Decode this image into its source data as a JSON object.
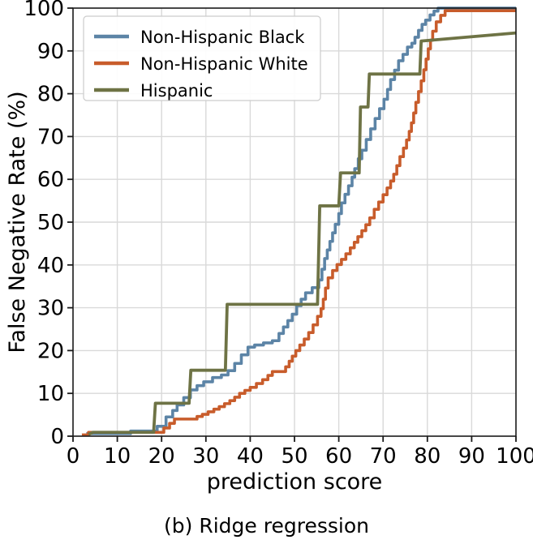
{
  "figure": {
    "caption": "(b) Ridge regression"
  },
  "chart_data": {
    "type": "line",
    "title": "",
    "xlabel": "prediction score",
    "ylabel": "False Negative Rate (%)",
    "xlim": [
      0,
      100
    ],
    "ylim": [
      0,
      100
    ],
    "xticks": [
      0,
      10,
      20,
      30,
      40,
      50,
      60,
      70,
      80,
      90,
      100
    ],
    "yticks": [
      0,
      10,
      20,
      30,
      40,
      50,
      60,
      70,
      80,
      90,
      100
    ],
    "grid": true,
    "grid_color": "#d9d9d9",
    "spine_color": "#1a1a1a",
    "legend_position": "upper left",
    "series": [
      {
        "name": "Non-Hispanic Black",
        "color": "#5C84A6",
        "interp": "step",
        "line_width": 3.6,
        "points": [
          [
            3,
            0.6
          ],
          [
            13,
            1.2
          ],
          [
            19,
            2.3
          ],
          [
            21,
            4.5
          ],
          [
            22.5,
            6
          ],
          [
            23.5,
            7.3
          ],
          [
            25,
            9
          ],
          [
            26.5,
            10.8
          ],
          [
            28,
            11.8
          ],
          [
            29.5,
            12.7
          ],
          [
            31.5,
            13.7
          ],
          [
            33.5,
            14.3
          ],
          [
            35,
            15.3
          ],
          [
            36.5,
            17
          ],
          [
            38,
            19
          ],
          [
            39.5,
            20.8
          ],
          [
            41,
            21.3
          ],
          [
            43,
            21.8
          ],
          [
            45,
            22.3
          ],
          [
            46.5,
            24
          ],
          [
            47.5,
            25.5
          ],
          [
            48.5,
            27
          ],
          [
            49.5,
            28.5
          ],
          [
            50.5,
            30.5
          ],
          [
            51.5,
            32
          ],
          [
            52.5,
            33.5
          ],
          [
            54,
            34.7
          ],
          [
            55.5,
            36.5
          ],
          [
            56.2,
            39
          ],
          [
            56.8,
            41.5
          ],
          [
            57.4,
            43.5
          ],
          [
            58,
            45.5
          ],
          [
            58.6,
            47.5
          ],
          [
            59.2,
            49.5
          ],
          [
            60,
            52
          ],
          [
            60.6,
            54.5
          ],
          [
            61.4,
            56.5
          ],
          [
            62.2,
            58.5
          ],
          [
            63,
            60.5
          ],
          [
            63.6,
            62.5
          ],
          [
            64.4,
            64.8
          ],
          [
            65.2,
            66.8
          ],
          [
            66.2,
            69.3
          ],
          [
            67.2,
            71.8
          ],
          [
            68.2,
            74.2
          ],
          [
            69.2,
            76.5
          ],
          [
            70.2,
            78.7
          ],
          [
            71,
            81
          ],
          [
            71.7,
            83.3
          ],
          [
            72.6,
            85.5
          ],
          [
            73.5,
            87.7
          ],
          [
            74.5,
            89.2
          ],
          [
            75.5,
            90.9
          ],
          [
            76.5,
            91.8
          ],
          [
            77.2,
            93.2
          ],
          [
            78,
            94.8
          ],
          [
            78.8,
            96.2
          ],
          [
            79.6,
            97.2
          ],
          [
            80.6,
            98.4
          ],
          [
            81.5,
            99.3
          ],
          [
            82.4,
            100
          ],
          [
            100,
            100
          ]
        ]
      },
      {
        "name": "Non-Hispanic White",
        "color": "#C85C2B",
        "interp": "step",
        "line_width": 3.6,
        "points": [
          [
            2,
            0.3
          ],
          [
            3.5,
            0.9
          ],
          [
            20.5,
            1.9
          ],
          [
            21.8,
            3
          ],
          [
            22.9,
            4
          ],
          [
            28,
            4.6
          ],
          [
            29.2,
            5.1
          ],
          [
            30.5,
            5.7
          ],
          [
            31.8,
            6.3
          ],
          [
            33,
            6.9
          ],
          [
            34.2,
            7.6
          ],
          [
            35.4,
            8.3
          ],
          [
            36.5,
            9.1
          ],
          [
            37.6,
            10
          ],
          [
            38.8,
            10.7
          ],
          [
            40,
            11.4
          ],
          [
            41.4,
            12.3
          ],
          [
            42.8,
            13.2
          ],
          [
            44,
            14.2
          ],
          [
            45,
            15.1
          ],
          [
            48,
            16.2
          ],
          [
            48.8,
            17.5
          ],
          [
            49.5,
            18.7
          ],
          [
            50.3,
            20
          ],
          [
            51.2,
            21.3
          ],
          [
            52.2,
            22.7
          ],
          [
            53.2,
            24.2
          ],
          [
            54.2,
            26
          ],
          [
            55.2,
            28
          ],
          [
            56,
            29.8
          ],
          [
            56.5,
            32
          ],
          [
            57,
            34.6
          ],
          [
            57.6,
            37
          ],
          [
            58.6,
            38.7
          ],
          [
            59.6,
            40.1
          ],
          [
            60.6,
            41.3
          ],
          [
            61.6,
            42.6
          ],
          [
            62.6,
            44
          ],
          [
            63.5,
            45.3
          ],
          [
            64.3,
            46.6
          ],
          [
            65.2,
            48
          ],
          [
            66.1,
            49.4
          ],
          [
            67,
            51
          ],
          [
            68,
            53
          ],
          [
            69,
            54.7
          ],
          [
            70,
            56.4
          ],
          [
            70.9,
            58
          ],
          [
            71.7,
            59.6
          ],
          [
            72.4,
            61.2
          ],
          [
            73.1,
            63.2
          ],
          [
            73.8,
            65.3
          ],
          [
            74.6,
            67.3
          ],
          [
            75.3,
            69.2
          ],
          [
            75.9,
            71.2
          ],
          [
            76.4,
            73.2
          ],
          [
            76.9,
            75.5
          ],
          [
            77.4,
            78
          ],
          [
            78,
            80.5
          ],
          [
            78.6,
            83
          ],
          [
            79.2,
            85.6
          ],
          [
            79.7,
            88.1
          ],
          [
            80.2,
            90.5
          ],
          [
            80.7,
            92.5
          ],
          [
            81.2,
            94.6
          ],
          [
            82,
            96.8
          ],
          [
            83,
            98.3
          ],
          [
            84,
            99.4
          ],
          [
            100,
            99.4
          ]
        ]
      },
      {
        "name": "Hispanic",
        "color": "#6E7345",
        "interp": "linear",
        "line_width": 3.8,
        "points": [
          [
            3.5,
            0.4
          ],
          [
            4.5,
            0.9
          ],
          [
            18.2,
            0.9
          ],
          [
            18.6,
            7.7
          ],
          [
            26.2,
            7.7
          ],
          [
            26.6,
            15.4
          ],
          [
            34.4,
            15.4
          ],
          [
            34.8,
            30.8
          ],
          [
            55.2,
            30.8
          ],
          [
            55.7,
            53.8
          ],
          [
            60,
            53.8
          ],
          [
            60.4,
            61.5
          ],
          [
            64.6,
            61.5
          ],
          [
            64.9,
            76.9
          ],
          [
            66.6,
            76.9
          ],
          [
            66.9,
            84.6
          ],
          [
            78.3,
            84.6
          ],
          [
            78.6,
            92.3
          ],
          [
            100,
            94.2
          ]
        ]
      }
    ]
  }
}
